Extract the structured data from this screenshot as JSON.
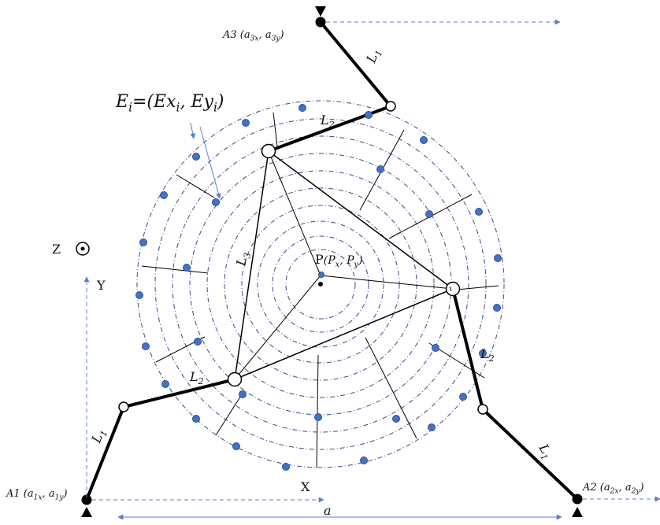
{
  "labels": {
    "a1": "A1 (a1x, a1y)",
    "a2": "A2 (a2x, a2y)",
    "a3": "A3 (a3x, a3y)",
    "ei": "Ei=(Exi, Eyi)",
    "p": "P(Px, Py)",
    "z": "Z",
    "y": "Y",
    "x": "X",
    "a": "a",
    "l1": "L1",
    "l2": "L2",
    "l3": "L3"
  },
  "colors": {
    "link": "#000000",
    "grid": "#3b4a8a",
    "dot": "#4472c4",
    "dot_edge": "#2f4f8f",
    "arrow": "#5b7fc7"
  }
}
